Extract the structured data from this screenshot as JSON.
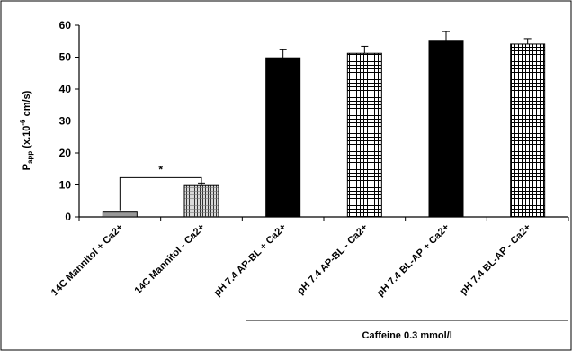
{
  "chart_data": {
    "type": "bar",
    "ylabel_main": "P",
    "ylabel_sub": "app",
    "ylabel_rest": " (x.10",
    "ylabel_sup": "-6",
    "ylabel_unit": " cm/s)",
    "ylim": [
      0,
      60
    ],
    "yticks": [
      0,
      10,
      20,
      30,
      40,
      50,
      60
    ],
    "grid": false,
    "categories": [
      "14C Mannitol + Ca2+",
      "14C Mannitol - Ca2+",
      "pH 7.4 AP-BL + Ca2+",
      "pH 7.4 AP-BL - Ca2+",
      "pH 7.4 BL-AP + Ca2+",
      "pH 7.4 BL-AP - Ca2+"
    ],
    "values": [
      1.5,
      9.8,
      49.8,
      51.2,
      55.0,
      54.1
    ],
    "errors": [
      0,
      0.8,
      2.5,
      2.2,
      3.0,
      1.7
    ],
    "fills": [
      "gray",
      "vstripe",
      "black",
      "grid",
      "black",
      "grid"
    ],
    "colors": {
      "gray": "#999999",
      "black": "#000000",
      "white": "#ffffff"
    },
    "significance": {
      "between": [
        0,
        1
      ],
      "label": "*",
      "level": 12.3
    },
    "group": {
      "label": "Caffeine 0.3 mmol/l",
      "from": 2,
      "to": 5
    }
  }
}
